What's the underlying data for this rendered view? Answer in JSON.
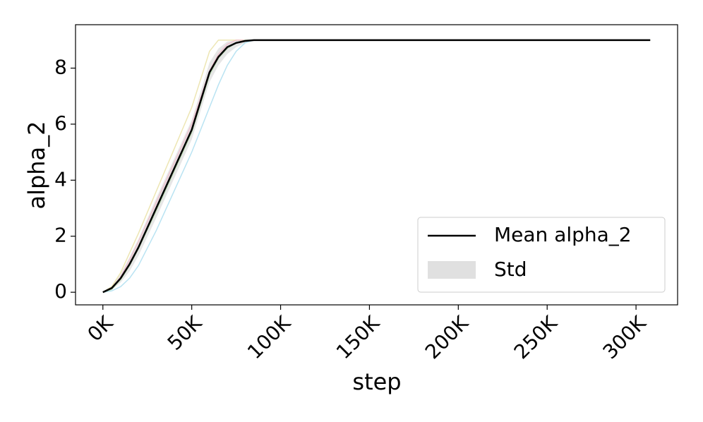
{
  "chart_data": {
    "type": "line",
    "xlabel": "step",
    "ylabel": "alpha_2",
    "x": [
      0,
      5000,
      10000,
      15000,
      20000,
      30000,
      40000,
      50000,
      60000,
      65000,
      70000,
      75000,
      80000,
      85000,
      308000
    ],
    "series": [
      {
        "name": "Mean alpha_2",
        "color": "#000000",
        "values": [
          0,
          0.15,
          0.5,
          1.0,
          1.6,
          3.0,
          4.4,
          5.8,
          7.85,
          8.4,
          8.75,
          8.9,
          8.97,
          9.0,
          9.0
        ]
      }
    ],
    "band": {
      "name": "Std",
      "color": "#e0e0e0",
      "lower": [
        0,
        0.1,
        0.35,
        0.75,
        1.3,
        2.65,
        4.05,
        5.45,
        7.5,
        8.1,
        8.5,
        8.75,
        8.9,
        9.0,
        9.0
      ],
      "upper": [
        0,
        0.2,
        0.65,
        1.25,
        1.9,
        3.35,
        4.75,
        6.15,
        8.2,
        8.7,
        8.95,
        9.0,
        9.0,
        9.0,
        9.0
      ]
    },
    "runs": [
      {
        "color": "#e8e0a0",
        "values": [
          0,
          0.2,
          0.7,
          1.4,
          2.1,
          3.6,
          5.1,
          6.6,
          8.6,
          9.0,
          9.0,
          9.0,
          9.0,
          9.0,
          9.0
        ]
      },
      {
        "color": "#a8dcef",
        "values": [
          0,
          0.05,
          0.2,
          0.5,
          0.95,
          2.2,
          3.6,
          5.0,
          6.6,
          7.4,
          8.1,
          8.6,
          8.9,
          9.0,
          9.0
        ]
      },
      {
        "color": "#f0b8c8",
        "values": [
          0,
          0.15,
          0.55,
          1.15,
          1.8,
          3.2,
          4.6,
          6.0,
          7.9,
          8.5,
          8.85,
          9.0,
          9.0,
          9.0,
          9.0
        ]
      },
      {
        "color": "#b8dcb0",
        "values": [
          0,
          0.1,
          0.45,
          0.95,
          1.55,
          2.9,
          4.3,
          5.7,
          7.75,
          8.35,
          8.7,
          8.9,
          9.0,
          9.0,
          9.0
        ]
      }
    ],
    "xlim": [
      -15400,
      323400
    ],
    "ylim": [
      -0.45,
      9.55
    ],
    "xticks": [
      {
        "value": 0,
        "label": "0K"
      },
      {
        "value": 50000,
        "label": "50K"
      },
      {
        "value": 100000,
        "label": "100K"
      },
      {
        "value": 150000,
        "label": "150K"
      },
      {
        "value": 200000,
        "label": "200K"
      },
      {
        "value": 250000,
        "label": "250K"
      },
      {
        "value": 300000,
        "label": "300K"
      }
    ],
    "yticks": [
      0,
      2,
      4,
      6,
      8
    ],
    "legend": "lower right"
  }
}
